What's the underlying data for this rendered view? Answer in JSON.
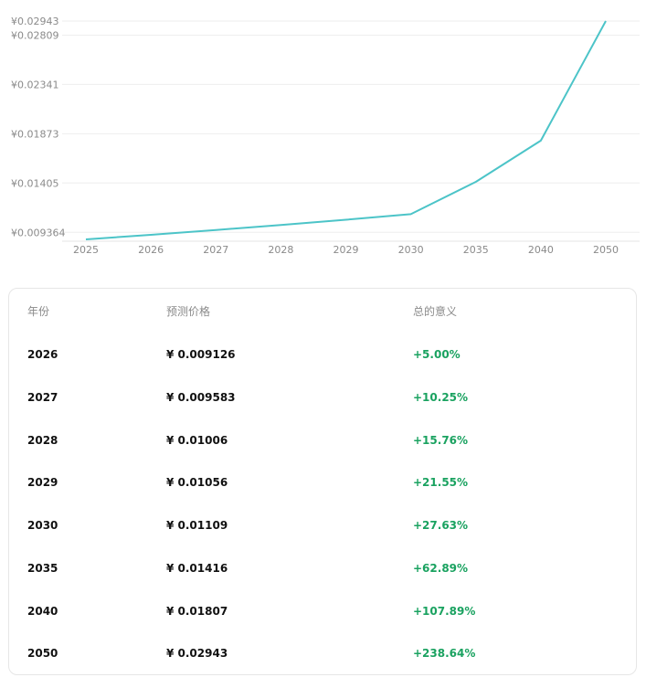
{
  "colors": {
    "line": "#4cc4c8",
    "grid": "#eeeeee",
    "positive": "#1aa260",
    "axis_text": "#8a8a8a"
  },
  "chart_data": {
    "type": "line",
    "title": "",
    "xlabel": "",
    "ylabel": "",
    "categories": [
      "2025",
      "2026",
      "2027",
      "2028",
      "2029",
      "2030",
      "2035",
      "2040",
      "2050"
    ],
    "series": [
      {
        "values": [
          0.008692,
          0.009126,
          0.009583,
          0.01006,
          0.01056,
          0.01109,
          0.01416,
          0.01807,
          0.02943
        ]
      }
    ],
    "y_ticks": [
      "¥0.009364",
      "¥0.01405",
      "¥0.01873",
      "¥0.02341",
      "¥0.02809",
      "¥0.02943"
    ],
    "y_tick_values": [
      0.009364,
      0.01405,
      0.01873,
      0.02341,
      0.02809,
      0.02943
    ],
    "ylim": [
      0.008692,
      0.02943
    ],
    "grid": true,
    "legend": "none"
  },
  "table": {
    "headers": {
      "year": "年份",
      "price": "预测价格",
      "change": "总的意义"
    },
    "rows": [
      {
        "year": "2026",
        "price": "¥ 0.009126",
        "change": "+5.00%"
      },
      {
        "year": "2027",
        "price": "¥ 0.009583",
        "change": "+10.25%"
      },
      {
        "year": "2028",
        "price": "¥ 0.01006",
        "change": "+15.76%"
      },
      {
        "year": "2029",
        "price": "¥ 0.01056",
        "change": "+21.55%"
      },
      {
        "year": "2030",
        "price": "¥ 0.01109",
        "change": "+27.63%"
      },
      {
        "year": "2035",
        "price": "¥ 0.01416",
        "change": "+62.89%"
      },
      {
        "year": "2040",
        "price": "¥ 0.01807",
        "change": "+107.89%"
      },
      {
        "year": "2050",
        "price": "¥ 0.02943",
        "change": "+238.64%"
      }
    ]
  }
}
